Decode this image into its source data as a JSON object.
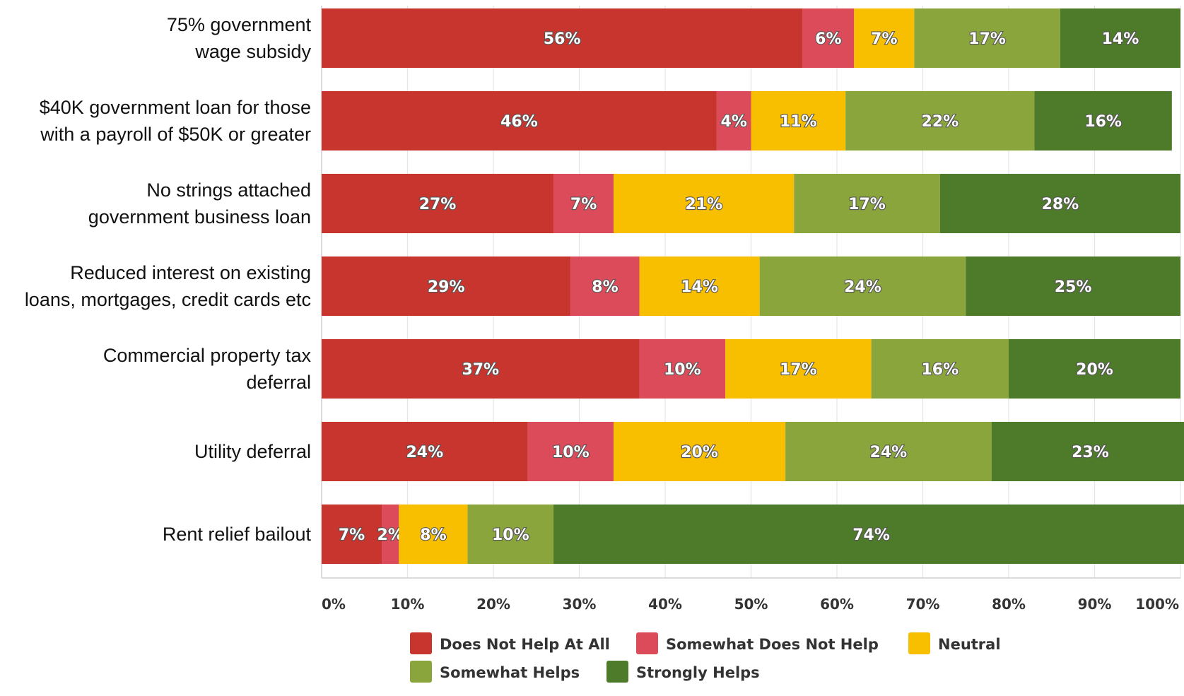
{
  "chart_data": {
    "type": "bar",
    "orientation": "horizontal",
    "stacked": true,
    "title": "",
    "xlabel": "",
    "ylabel": "",
    "xlim": [
      0,
      100
    ],
    "grid": true,
    "legend_position": "bottom",
    "categories": [
      [
        "75% government",
        "wage subsidy"
      ],
      [
        "$40K government loan for those",
        "with a payroll of $50K or greater"
      ],
      [
        "No strings attached",
        "government business loan"
      ],
      [
        "Reduced interest on existing",
        "loans, mortgages, credit cards etc"
      ],
      [
        "Commercial property tax",
        "deferral"
      ],
      [
        "Utility deferral"
      ],
      [
        "Rent relief bailout"
      ]
    ],
    "x_ticks": [
      "0%",
      "10%",
      "20%",
      "30%",
      "40%",
      "50%",
      "60%",
      "70%",
      "80%",
      "90%",
      "100%"
    ],
    "series": [
      {
        "name": "Does Not Help At All",
        "color": "#c8342e",
        "values": [
          56,
          46,
          27,
          29,
          37,
          24,
          7
        ],
        "labels": [
          "56%",
          "46%",
          "27%",
          "29%",
          "37%",
          "24%",
          "7%"
        ]
      },
      {
        "name": "Somewhat Does Not Help",
        "color": "#dc4b5a",
        "values": [
          6,
          4,
          7,
          8,
          10,
          10,
          2
        ],
        "labels": [
          "6%",
          "4%",
          "7%",
          "8%",
          "10%",
          "10%",
          "2%"
        ]
      },
      {
        "name": "Neutral",
        "color": "#f8bf00",
        "values": [
          7,
          11,
          21,
          14,
          17,
          20,
          8
        ],
        "labels": [
          "7%",
          "11%",
          "21%",
          "14%",
          "17%",
          "20%",
          "8%"
        ]
      },
      {
        "name": "Somewhat Helps",
        "color": "#89a53c",
        "values": [
          17,
          22,
          17,
          24,
          16,
          24,
          10
        ],
        "labels": [
          "17%",
          "22%",
          "17%",
          "24%",
          "16%",
          "24%",
          "10%"
        ]
      },
      {
        "name": "Strongly Helps",
        "color": "#4d7b29",
        "values": [
          14,
          16,
          28,
          25,
          20,
          23,
          74
        ],
        "labels": [
          "14%",
          "16%",
          "28%",
          "25%",
          "20%",
          "23%",
          "74%"
        ]
      }
    ]
  }
}
